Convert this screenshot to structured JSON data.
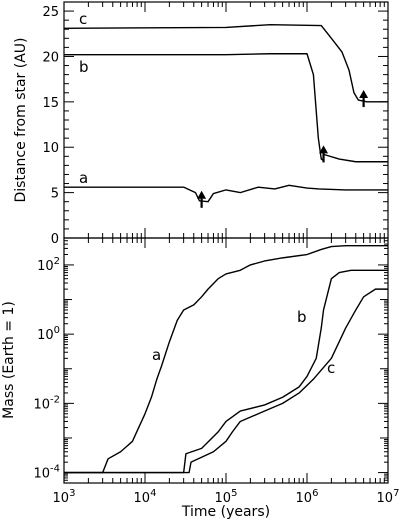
{
  "chart_data": [
    {
      "type": "line",
      "panel": "top",
      "xlabel": "",
      "ylabel": "Distance from star (AU)",
      "x_scale": "log",
      "xlim": [
        1000,
        10000000
      ],
      "ylim": [
        0,
        26
      ],
      "yticks": [
        "0",
        "5",
        "10",
        "15",
        "20",
        "25"
      ],
      "grid": false,
      "series": [
        {
          "name": "a",
          "points": [
            [
              1000,
              5.6
            ],
            [
              30000,
              5.6
            ],
            [
              42000,
              5.0
            ],
            [
              47000,
              4.1
            ],
            [
              60000,
              4.0
            ],
            [
              70000,
              4.9
            ],
            [
              100000,
              5.3
            ],
            [
              150000,
              5.0
            ],
            [
              250000,
              5.6
            ],
            [
              400000,
              5.4
            ],
            [
              600000,
              5.8
            ],
            [
              1000000,
              5.5
            ],
            [
              1400000,
              5.4
            ],
            [
              3000000,
              5.3
            ],
            [
              10000000,
              5.3
            ]
          ]
        },
        {
          "name": "b",
          "points": [
            [
              1000,
              20.2
            ],
            [
              100000,
              20.2
            ],
            [
              350000,
              20.3
            ],
            [
              1000000,
              20.3
            ],
            [
              1200000,
              18.0
            ],
            [
              1380000,
              11.0
            ],
            [
              1500000,
              8.7
            ],
            [
              1560000,
              8.6
            ],
            [
              1620000,
              9.2
            ],
            [
              2500000,
              8.7
            ],
            [
              4000000,
              8.4
            ],
            [
              10000000,
              8.4
            ]
          ]
        },
        {
          "name": "c",
          "points": [
            [
              1000,
              23.1
            ],
            [
              100000,
              23.2
            ],
            [
              350000,
              23.5
            ],
            [
              1500000,
              23.4
            ],
            [
              2000000,
              22.0
            ],
            [
              2700000,
              20.5
            ],
            [
              3300000,
              18.5
            ],
            [
              3800000,
              16.0
            ],
            [
              4300000,
              15.2
            ],
            [
              5500000,
              15.0
            ],
            [
              10000000,
              15.0
            ]
          ]
        }
      ],
      "annotations": [
        {
          "type": "arrow",
          "x": 50000,
          "y": 5.2
        },
        {
          "type": "arrow",
          "x": 1600000,
          "y": 10.2
        },
        {
          "type": "arrow",
          "x": 5000000,
          "y": 16.3
        }
      ]
    },
    {
      "type": "line",
      "panel": "bottom",
      "xlabel": "Time (years)",
      "ylabel": "Mass (Earth = 1)",
      "x_scale": "log",
      "y_scale": "log",
      "xlim": [
        1000,
        10000000
      ],
      "ylim": [
        5e-05,
        600
      ],
      "xticks": [
        {
          "value": 1000,
          "base": "10",
          "exp": "3"
        },
        {
          "value": 10000,
          "base": "10",
          "exp": "4"
        },
        {
          "value": 100000,
          "base": "10",
          "exp": "5"
        },
        {
          "value": 1000000,
          "base": "10",
          "exp": "6"
        },
        {
          "value": 10000000,
          "base": "10",
          "exp": "7"
        }
      ],
      "yticks": [
        {
          "value": 0.0001,
          "base": "10",
          "exp": "-4"
        },
        {
          "value": 0.01,
          "base": "10",
          "exp": "-2"
        },
        {
          "value": 1,
          "base": "10",
          "exp": "0"
        },
        {
          "value": 100,
          "base": "10",
          "exp": "2"
        }
      ],
      "grid": false,
      "series": [
        {
          "name": "a",
          "points": [
            [
              1000,
              0.0001
            ],
            [
              3000,
              0.0001
            ],
            [
              3500,
              0.00025
            ],
            [
              5000,
              0.0004
            ],
            [
              7000,
              0.0008
            ],
            [
              8000,
              0.0016
            ],
            [
              10000,
              0.005
            ],
            [
              12000,
              0.015
            ],
            [
              14000,
              0.05
            ],
            [
              16000,
              0.12
            ],
            [
              20000,
              0.6
            ],
            [
              25000,
              2.5
            ],
            [
              30000,
              5
            ],
            [
              40000,
              7
            ],
            [
              50000,
              12
            ],
            [
              60000,
              20
            ],
            [
              80000,
              40
            ],
            [
              100000,
              55
            ],
            [
              150000,
              70
            ],
            [
              200000,
              100
            ],
            [
              300000,
              130
            ],
            [
              500000,
              160
            ],
            [
              1000000,
              200
            ],
            [
              1500000,
              280
            ],
            [
              2000000,
              340
            ],
            [
              3000000,
              360
            ],
            [
              10000000,
              360
            ]
          ]
        },
        {
          "name": "b",
          "points": [
            [
              1000,
              0.0001
            ],
            [
              25000,
              0.0001
            ],
            [
              30000,
              0.0001
            ],
            [
              32000,
              0.00035
            ],
            [
              50000,
              0.0005
            ],
            [
              80000,
              0.0015
            ],
            [
              100000,
              0.003
            ],
            [
              150000,
              0.006
            ],
            [
              300000,
              0.009
            ],
            [
              500000,
              0.015
            ],
            [
              800000,
              0.03
            ],
            [
              1000000,
              0.06
            ],
            [
              1300000,
              0.2
            ],
            [
              1500000,
              1.5
            ],
            [
              1600000,
              5
            ],
            [
              1800000,
              15
            ],
            [
              2000000,
              40
            ],
            [
              2500000,
              60
            ],
            [
              3500000,
              70
            ],
            [
              10000000,
              70
            ]
          ]
        },
        {
          "name": "c",
          "points": [
            [
              1000,
              0.0001
            ],
            [
              32000,
              0.0001
            ],
            [
              35000,
              0.0001
            ],
            [
              37000,
              0.0002
            ],
            [
              70000,
              0.0004
            ],
            [
              100000,
              0.0008
            ],
            [
              120000,
              0.0015
            ],
            [
              150000,
              0.003
            ],
            [
              200000,
              0.004
            ],
            [
              300000,
              0.006
            ],
            [
              500000,
              0.01
            ],
            [
              800000,
              0.02
            ],
            [
              1200000,
              0.05
            ],
            [
              2000000,
              0.2
            ],
            [
              3000000,
              1.5
            ],
            [
              4000000,
              5
            ],
            [
              5000000,
              12
            ],
            [
              7000000,
              20
            ],
            [
              10000000,
              20
            ]
          ]
        }
      ]
    }
  ]
}
